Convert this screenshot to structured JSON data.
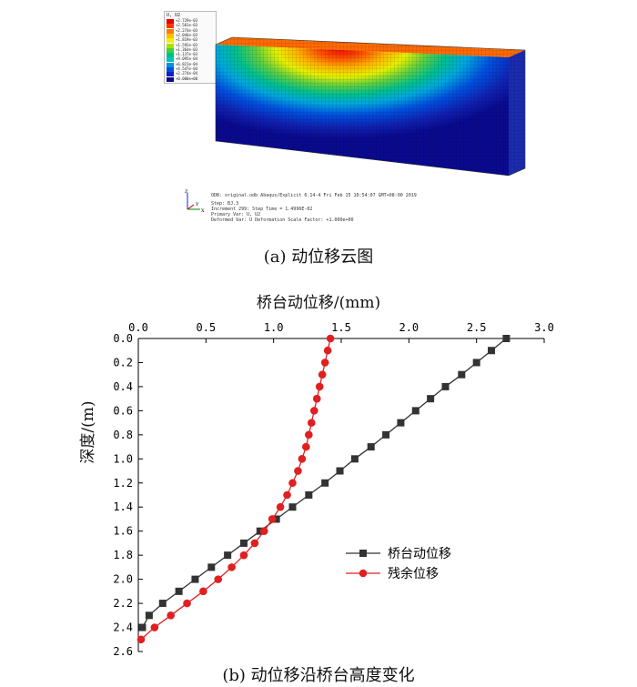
{
  "contour_plot": {
    "legend_title": "U, U2",
    "legend_values": [
      "+2.729e-03",
      "+2.501e-03",
      "+2.274e-03",
      "+2.046e-03",
      "+1.819e-03",
      "+1.592e-03",
      "+1.364e-03",
      "+1.137e-03",
      "+9.095e-04",
      "+6.821e-04",
      "+4.547e-04",
      "+2.274e-04",
      "+0.000e+00"
    ],
    "legend_colors": [
      "#e60000",
      "#ff3300",
      "#ff7a00",
      "#ffc000",
      "#f0f000",
      "#a8e000",
      "#40d040",
      "#00c080",
      "#00c0c8",
      "#0090e0",
      "#0050e0",
      "#1020c0",
      "#0a0a90"
    ],
    "info_lines": [
      "ODB: original.odb    Abaqus/Explicit 6.14-4    Fri Feb 15 10:54:07 GMT+08:00 2019",
      "Step: BJ.3",
      "Increment    299: Step Time =    1.4996E-02",
      "Primary Var: U, U2",
      "Deformed Var: U    Deformation Scale Factor: +1.000e+00"
    ],
    "triad_labels": {
      "z": "Z",
      "y": "Y",
      "x": "X"
    },
    "caption": "(a) 动位移云图"
  },
  "chart_data": {
    "type": "line",
    "xlabel": "桥台动位移/(mm)",
    "ylabel": "深度/(m)",
    "xlim": [
      0,
      3.0
    ],
    "ylim": [
      0,
      2.6
    ],
    "x_ticks": [
      "0.0",
      "0.5",
      "1.0",
      "1.5",
      "2.0",
      "2.5",
      "3.0"
    ],
    "y_ticks": [
      "0.0",
      "0.2",
      "0.4",
      "0.6",
      "0.8",
      "1.0",
      "1.2",
      "1.4",
      "1.6",
      "1.8",
      "2.0",
      "2.2",
      "2.4",
      "2.6"
    ],
    "series": [
      {
        "name": "桥台动位移",
        "color": "#333333",
        "marker": "square",
        "depth": [
          0.0,
          0.1,
          0.2,
          0.3,
          0.4,
          0.5,
          0.6,
          0.7,
          0.8,
          0.9,
          1.0,
          1.1,
          1.2,
          1.3,
          1.4,
          1.5,
          1.6,
          1.7,
          1.8,
          1.9,
          2.0,
          2.1,
          2.2,
          2.3,
          2.4
        ],
        "displacement": [
          2.72,
          2.61,
          2.5,
          2.39,
          2.27,
          2.16,
          2.05,
          1.94,
          1.83,
          1.72,
          1.6,
          1.49,
          1.38,
          1.26,
          1.14,
          1.02,
          0.9,
          0.78,
          0.66,
          0.54,
          0.42,
          0.3,
          0.18,
          0.08,
          0.03
        ]
      },
      {
        "name": "残余位移",
        "color": "#e02020",
        "marker": "circle",
        "depth": [
          0.0,
          0.1,
          0.2,
          0.3,
          0.4,
          0.5,
          0.6,
          0.7,
          0.8,
          0.9,
          1.0,
          1.1,
          1.2,
          1.3,
          1.4,
          1.5,
          1.6,
          1.7,
          1.8,
          1.9,
          2.0,
          2.1,
          2.2,
          2.3,
          2.4,
          2.5
        ],
        "displacement": [
          1.42,
          1.4,
          1.38,
          1.36,
          1.34,
          1.32,
          1.3,
          1.28,
          1.26,
          1.24,
          1.21,
          1.18,
          1.14,
          1.1,
          1.05,
          0.99,
          0.93,
          0.86,
          0.78,
          0.69,
          0.59,
          0.48,
          0.36,
          0.24,
          0.12,
          0.02
        ]
      }
    ],
    "legend_position": "center-right"
  },
  "caption_b": "(b) 动位移沿桥台高度变化"
}
